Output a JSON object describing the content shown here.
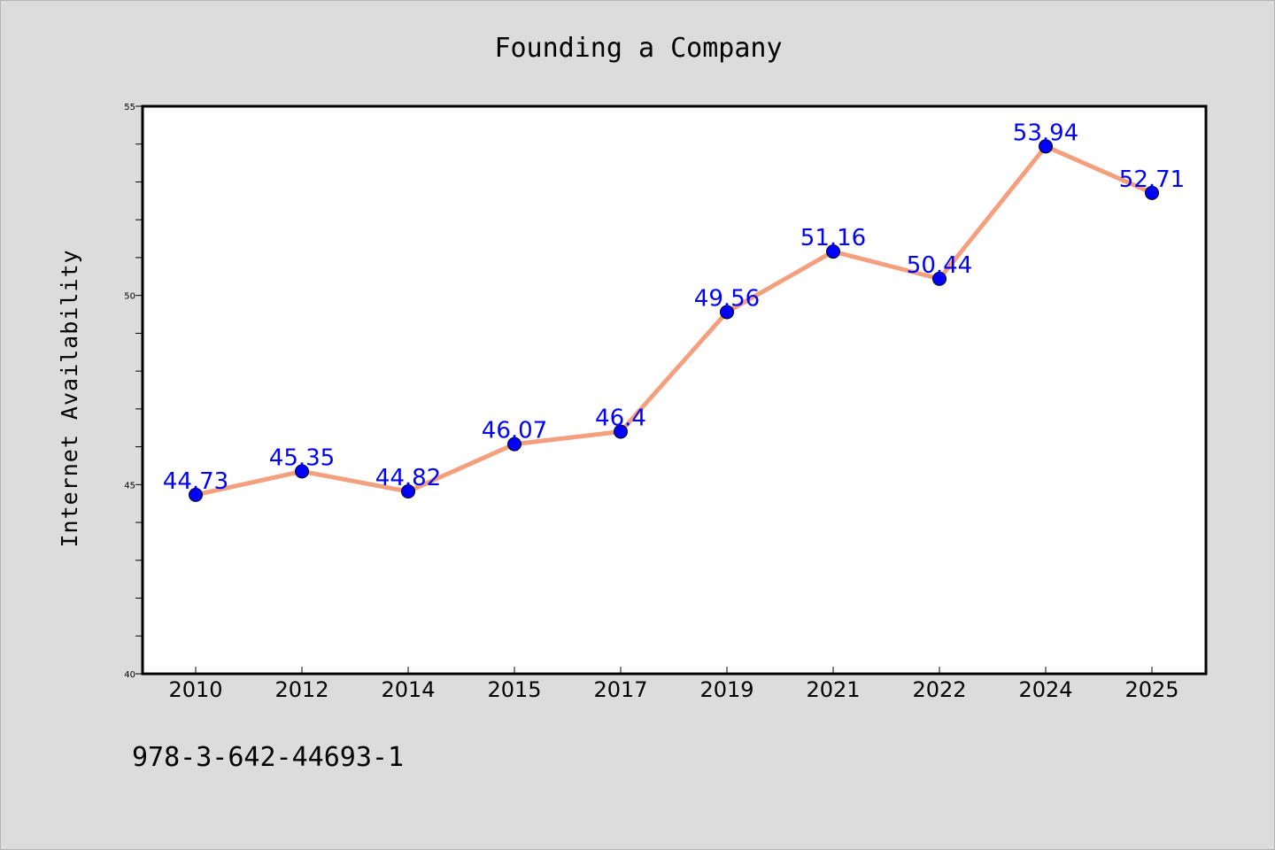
{
  "chart_data": {
    "type": "line",
    "title": "Founding a Company",
    "xlabel": "",
    "ylabel": "Internet Availability",
    "categories": [
      "2010",
      "2012",
      "2014",
      "2015",
      "2017",
      "2019",
      "2021",
      "2022",
      "2024",
      "2025"
    ],
    "series": [
      {
        "values": [
          44.73,
          45.35,
          44.82,
          46.07,
          46.4,
          49.56,
          51.16,
          50.44,
          53.94,
          52.71
        ],
        "data_labels": [
          "44.73",
          "45.35",
          "44.82",
          "46.07",
          "46.4",
          "49.56",
          "51.16",
          "50.44",
          "53.94",
          "52.71"
        ],
        "line_color": "#f4a07e",
        "marker_color": "#0000ff",
        "label_color": "#0000ff"
      }
    ],
    "ylim": [
      40,
      55
    ],
    "yticks": [
      "40",
      "45",
      "50",
      "55"
    ],
    "grid": false,
    "legend": "none"
  },
  "footer_text": "978-3-642-44693-1",
  "colors": {
    "background": "#dcdcdc",
    "plot_background": "#ffffff"
  }
}
